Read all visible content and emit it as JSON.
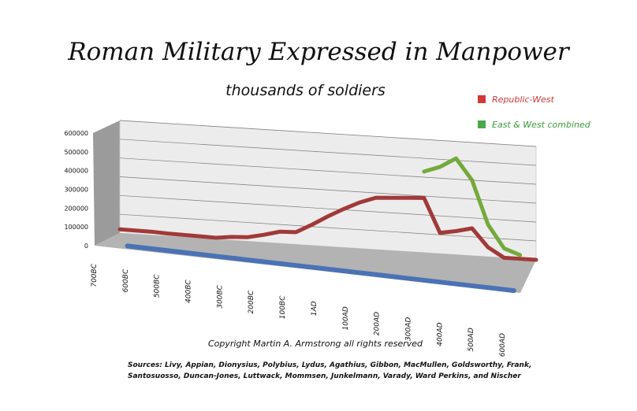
{
  "chart_data": {
    "type": "line",
    "title": "Roman Military Expressed in Manpower",
    "subtitle": "thousands of soldiers",
    "categories": [
      "700BC",
      "600BC",
      "500BC",
      "400BC",
      "300BC",
      "200BC",
      "100BC",
      "1AD",
      "100AD",
      "200AD",
      "300AD",
      "400AD",
      "500AD",
      "600AD"
    ],
    "y_ticks": [
      "600000",
      "500000",
      "400000",
      "300000",
      "200000",
      "100000",
      "0"
    ],
    "ylim": [
      0,
      600000
    ],
    "series": [
      {
        "name": "Republic-West",
        "color": "#a03a38",
        "points": [
          [
            0,
            20000
          ],
          [
            1,
            18000
          ],
          [
            1.5,
            14000
          ],
          [
            2,
            12000
          ],
          [
            2.5,
            10000
          ],
          [
            3,
            8000
          ],
          [
            3.5,
            18000
          ],
          [
            4,
            22000
          ],
          [
            4.5,
            40000
          ],
          [
            5,
            62000
          ],
          [
            5.5,
            65000
          ],
          [
            6,
            110000
          ],
          [
            6.5,
            160000
          ],
          [
            7,
            205000
          ],
          [
            7.5,
            245000
          ],
          [
            8,
            275000
          ],
          [
            8.5,
            280000
          ],
          [
            9,
            285000
          ],
          [
            9.5,
            290000
          ],
          [
            10,
            110000
          ],
          [
            10.5,
            125000
          ],
          [
            11,
            145000
          ],
          [
            11.5,
            50000
          ],
          [
            12,
            0
          ],
          [
            12.5,
            0
          ],
          [
            13,
            0
          ]
        ]
      },
      {
        "name": "East & West combined",
        "color": "#74a93c",
        "points": [
          [
            9.5,
            430000
          ],
          [
            10,
            460000
          ],
          [
            10.5,
            510000
          ],
          [
            11,
            400000
          ],
          [
            11.5,
            170000
          ],
          [
            12,
            50000
          ],
          [
            12.5,
            20000
          ]
        ]
      }
    ],
    "base_series": {
      "color": "#4a72b4"
    },
    "legend_position": "right",
    "grid": true
  },
  "copyright": "Copyright Martin A. Armstrong all rights reserved",
  "sources": "Sources: Livy, Appian, Dionysius, Polybius, Lydus, Agathius, Gibbon, MacMullen, Goldsworthy, Frank, Santosuosso, Duncan-Jones, Luttwack, Mommsen, Junkelmann, Varady, Ward Perkins, and Nischer"
}
